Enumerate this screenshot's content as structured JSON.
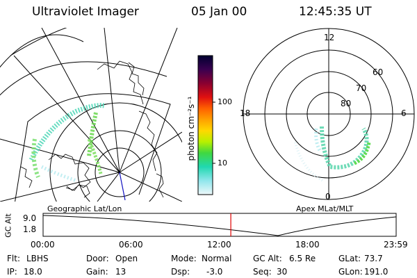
{
  "header": {
    "instrument": "Ultraviolet Imager",
    "date": "05 Jan 00",
    "time": "12:45:35 UT"
  },
  "colorbar": {
    "label": "photon cm⁻²s⁻¹",
    "ticks": [
      "100",
      "10"
    ],
    "scale": "log",
    "colors": [
      "#000030",
      "#2a0040",
      "#5a0060",
      "#8a0030",
      "#b80010",
      "#e01010",
      "#ff6000",
      "#ff9a00",
      "#ffd000",
      "#d8f000",
      "#7ae000",
      "#20d040",
      "#20d8b0",
      "#60e0e8",
      "#b8ecf0",
      "#e8f6f8"
    ]
  },
  "left_panel": {
    "caption": "Geographic Lat/Lon"
  },
  "right_panel": {
    "caption": "Apex MLat/MLT",
    "mlt_labels": {
      "top": "12",
      "left": "18",
      "right": "6",
      "bottom": "0"
    },
    "mlat_labels": [
      "60",
      "70",
      "80"
    ]
  },
  "altitude_plot": {
    "ylabel": "GC Alt",
    "y_ticks": [
      "9.0",
      "1.8"
    ],
    "x_ticks": [
      "00:00",
      "06:00",
      "12:00",
      "18:00",
      "23:59"
    ],
    "current_time_fraction": 0.5317,
    "marker_color": "#e00000"
  },
  "info": {
    "flt_label": "Flt:",
    "flt_value": "LBHS",
    "ip_label": "IP:",
    "ip_value": "18.0",
    "door_label": "Door:",
    "door_value": "Open",
    "gain_label": "Gain:",
    "gain_value": "13",
    "mode_label": "Mode:",
    "mode_value": "Normal",
    "dsp_label": "Dsp:",
    "dsp_value": "-3.0",
    "gcalt_label": "GC Alt:",
    "gcalt_value": "6.5 Re",
    "seq_label": "Seq:",
    "seq_value": "30",
    "glat_label": "GLat:",
    "glat_value": "73.7",
    "glon_label": "GLon:",
    "glon_value": "191.0"
  }
}
